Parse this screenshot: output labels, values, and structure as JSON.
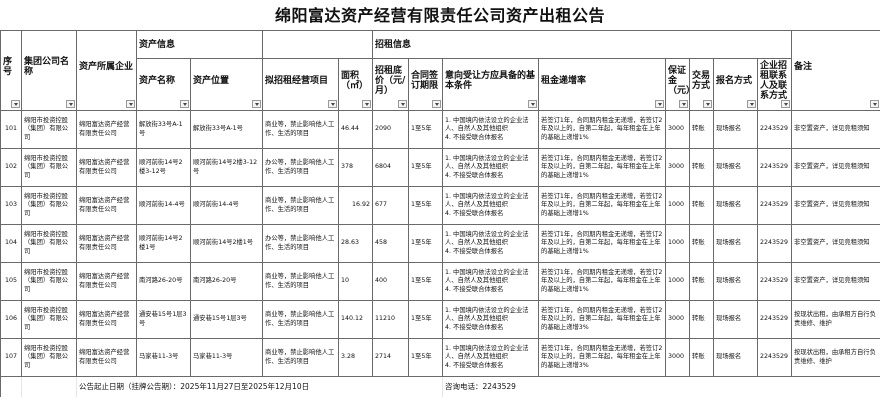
{
  "title": "绵阳富达资产经营有限责任公司资产出租公告",
  "group_headers": {
    "asset_info": "资产信息",
    "rent_info": "招租信息"
  },
  "headers": {
    "seq": "序号",
    "group_company": "集团公司名称",
    "owner": "资产所属企业",
    "asset_name": "资产名称",
    "asset_location": "资产位置",
    "business": "拟招租经营项目",
    "area": "面积（㎡）",
    "base_price": "招租底价（元/月）",
    "term": "合同签订期限",
    "conditions": "意向受让方应具备的基本条件",
    "increase": "租金递增率",
    "deposit": "保证金（元）",
    "trade": "交易方式",
    "signup": "报名方式",
    "contact": "企业招租联系人及联系方式",
    "remark": "备注"
  },
  "rows": [
    {
      "seq": "101",
      "group_company": "绵阳市投资控股（集团）有限公司",
      "owner": "绵阳富达资产经营有限责任公司",
      "asset_name": "解放街33号A-1号",
      "asset_location": "解放街33号A-1号",
      "business": "商业等，禁止影响他人工作、生活的项目",
      "area": "46.44",
      "base_price": "2090",
      "term": "1至5年",
      "conditions": "1. 中国境内依法设立的企业法人、自然人及其他组织\n4. 不接受联合体报名",
      "increase": "若签订1年，合同期内租金无递增，若签订2年及以上的，自第二年起，每年租金在上年的基础上递增1%",
      "deposit": "3000",
      "trade": "转账",
      "signup": "现场报名",
      "contact": "2243529",
      "remark": "非空置资产，详见竞租须知"
    },
    {
      "seq": "102",
      "group_company": "绵阳市投资控股（集团）有限公司",
      "owner": "绵阳富达资产经营有限责任公司",
      "asset_name": "顺河前街14号2楼3-12号",
      "asset_location": "顺河前街14号2楼3-12号",
      "business": "办公等，禁止影响他人工作、生活的项目",
      "area": "378",
      "base_price": "6804",
      "term": "1至5年",
      "conditions": "1. 中国境内依法设立的企业法人、自然人及其他组织\n4. 不接受联合体报名",
      "increase": "若签订1年，合同期内租金无递增，若签订2年及以上的，自第二年起，每年租金在上年的基础上递增1%",
      "deposit": "3000",
      "trade": "转账",
      "signup": "现场报名",
      "contact": "2243529",
      "remark": "非空置资产，详见竞租须知"
    },
    {
      "seq": "103",
      "group_company": "绵阳市投资控股（集团）有限公司",
      "owner": "绵阳富达资产经营有限责任公司",
      "asset_name": "顺河前街14-4号",
      "asset_location": "顺河前街14-4号",
      "business": "商业等，禁止影响他人工作、生活的项目",
      "area": "16.92",
      "base_price": "677",
      "term": "1至5年",
      "conditions": "1. 中国境内依法设立的企业法人、自然人及其他组织\n4. 不接受联合体报名",
      "increase": "若签订1年，合同期内租金无递增，若签订2年及以上的，自第二年起，每年租金在上年的基础上递增1%",
      "deposit": "1000",
      "trade": "转账",
      "signup": "现场报名",
      "contact": "2243529",
      "remark": "非空置资产，详见竞租须知"
    },
    {
      "seq": "104",
      "group_company": "绵阳市投资控股（集团）有限公司",
      "owner": "绵阳富达资产经营有限责任公司",
      "asset_name": "顺河前街14号2楼1号",
      "asset_location": "顺河前街14号2楼1号",
      "business": "办公等，禁止影响他人工作、生活的项目",
      "area": "28.63",
      "base_price": "458",
      "term": "1至5年",
      "conditions": "1. 中国境内依法设立的企业法人、自然人及其他组织\n4. 不接受联合体报名",
      "increase": "若签订1年，合同期内租金无递增，若签订2年及以上的，自第二年起，每年租金在上年的基础上递增1%",
      "deposit": "1000",
      "trade": "转账",
      "signup": "现场报名",
      "contact": "2243529",
      "remark": "非空置资产，详见竞租须知"
    },
    {
      "seq": "105",
      "group_company": "绵阳市投资控股（集团）有限公司",
      "owner": "绵阳富达资产经营有限责任公司",
      "asset_name": "南河路26-20号",
      "asset_location": "南河路26-20号",
      "business": "商业等，禁止影响他人工作、生活的项目",
      "area": "10",
      "base_price": "400",
      "term": "1至5年",
      "conditions": "1. 中国境内依法设立的企业法人、自然人及其他组织\n4. 不接受联合体报名",
      "increase": "若签订1年，合同期内租金无递增，若签订2年及以上的，自第二年起，每年租金在上年的基础上递增1%",
      "deposit": "1000",
      "trade": "转账",
      "signup": "现场报名",
      "contact": "2243529",
      "remark": "非空置资产，详见竞租须知"
    },
    {
      "seq": "106",
      "group_company": "绵阳市投资控股（集团）有限公司",
      "owner": "绵阳富达资产经营有限责任公司",
      "asset_name": "通安巷15号1层3号",
      "asset_location": "通安巷15号1层3号",
      "business": "商业等，禁止影响他人工作、生活的项目",
      "area": "140.12",
      "base_price": "11210",
      "term": "1至5年",
      "conditions": "1. 中国境内依法设立的企业法人、自然人及其他组织\n4. 不接受联合体报名",
      "increase": "若签订1年，合同期内租金无递增，若签订2年及以上的，自第二年起，每年租金在上年的基础上递增3%",
      "deposit": "3000",
      "trade": "转账",
      "signup": "现场报名",
      "contact": "2243529",
      "remark": "按现状出租，由承租方自行负责维修、维护"
    },
    {
      "seq": "107",
      "group_company": "绵阳市投资控股（集团）有限公司",
      "owner": "绵阳富达资产经营有限责任公司",
      "asset_name": "马家巷11-3号",
      "asset_location": "马家巷11-3号",
      "business": "商业等，禁止影响他人工作、生活的项目",
      "area": "3.28",
      "base_price": "2714",
      "term": "1至5年",
      "conditions": "1. 中国境内依法设立的企业法人、自然人及其他组织\n4. 不接受联合体报名",
      "increase": "若签订1年，合同期内租金无递增，若签订2年及以上的，自第二年起，每年租金在上年的基础上递增3%",
      "deposit": "3000",
      "trade": "转账",
      "signup": "现场报名",
      "contact": "2243529",
      "remark": "按现状出租，由承租方自行负责维修、维护"
    }
  ],
  "footer": {
    "period": "公告起止日期（挂牌公告期）：2025年11月27日至2025年12月10日",
    "phone": "咨询电话：2243529"
  }
}
